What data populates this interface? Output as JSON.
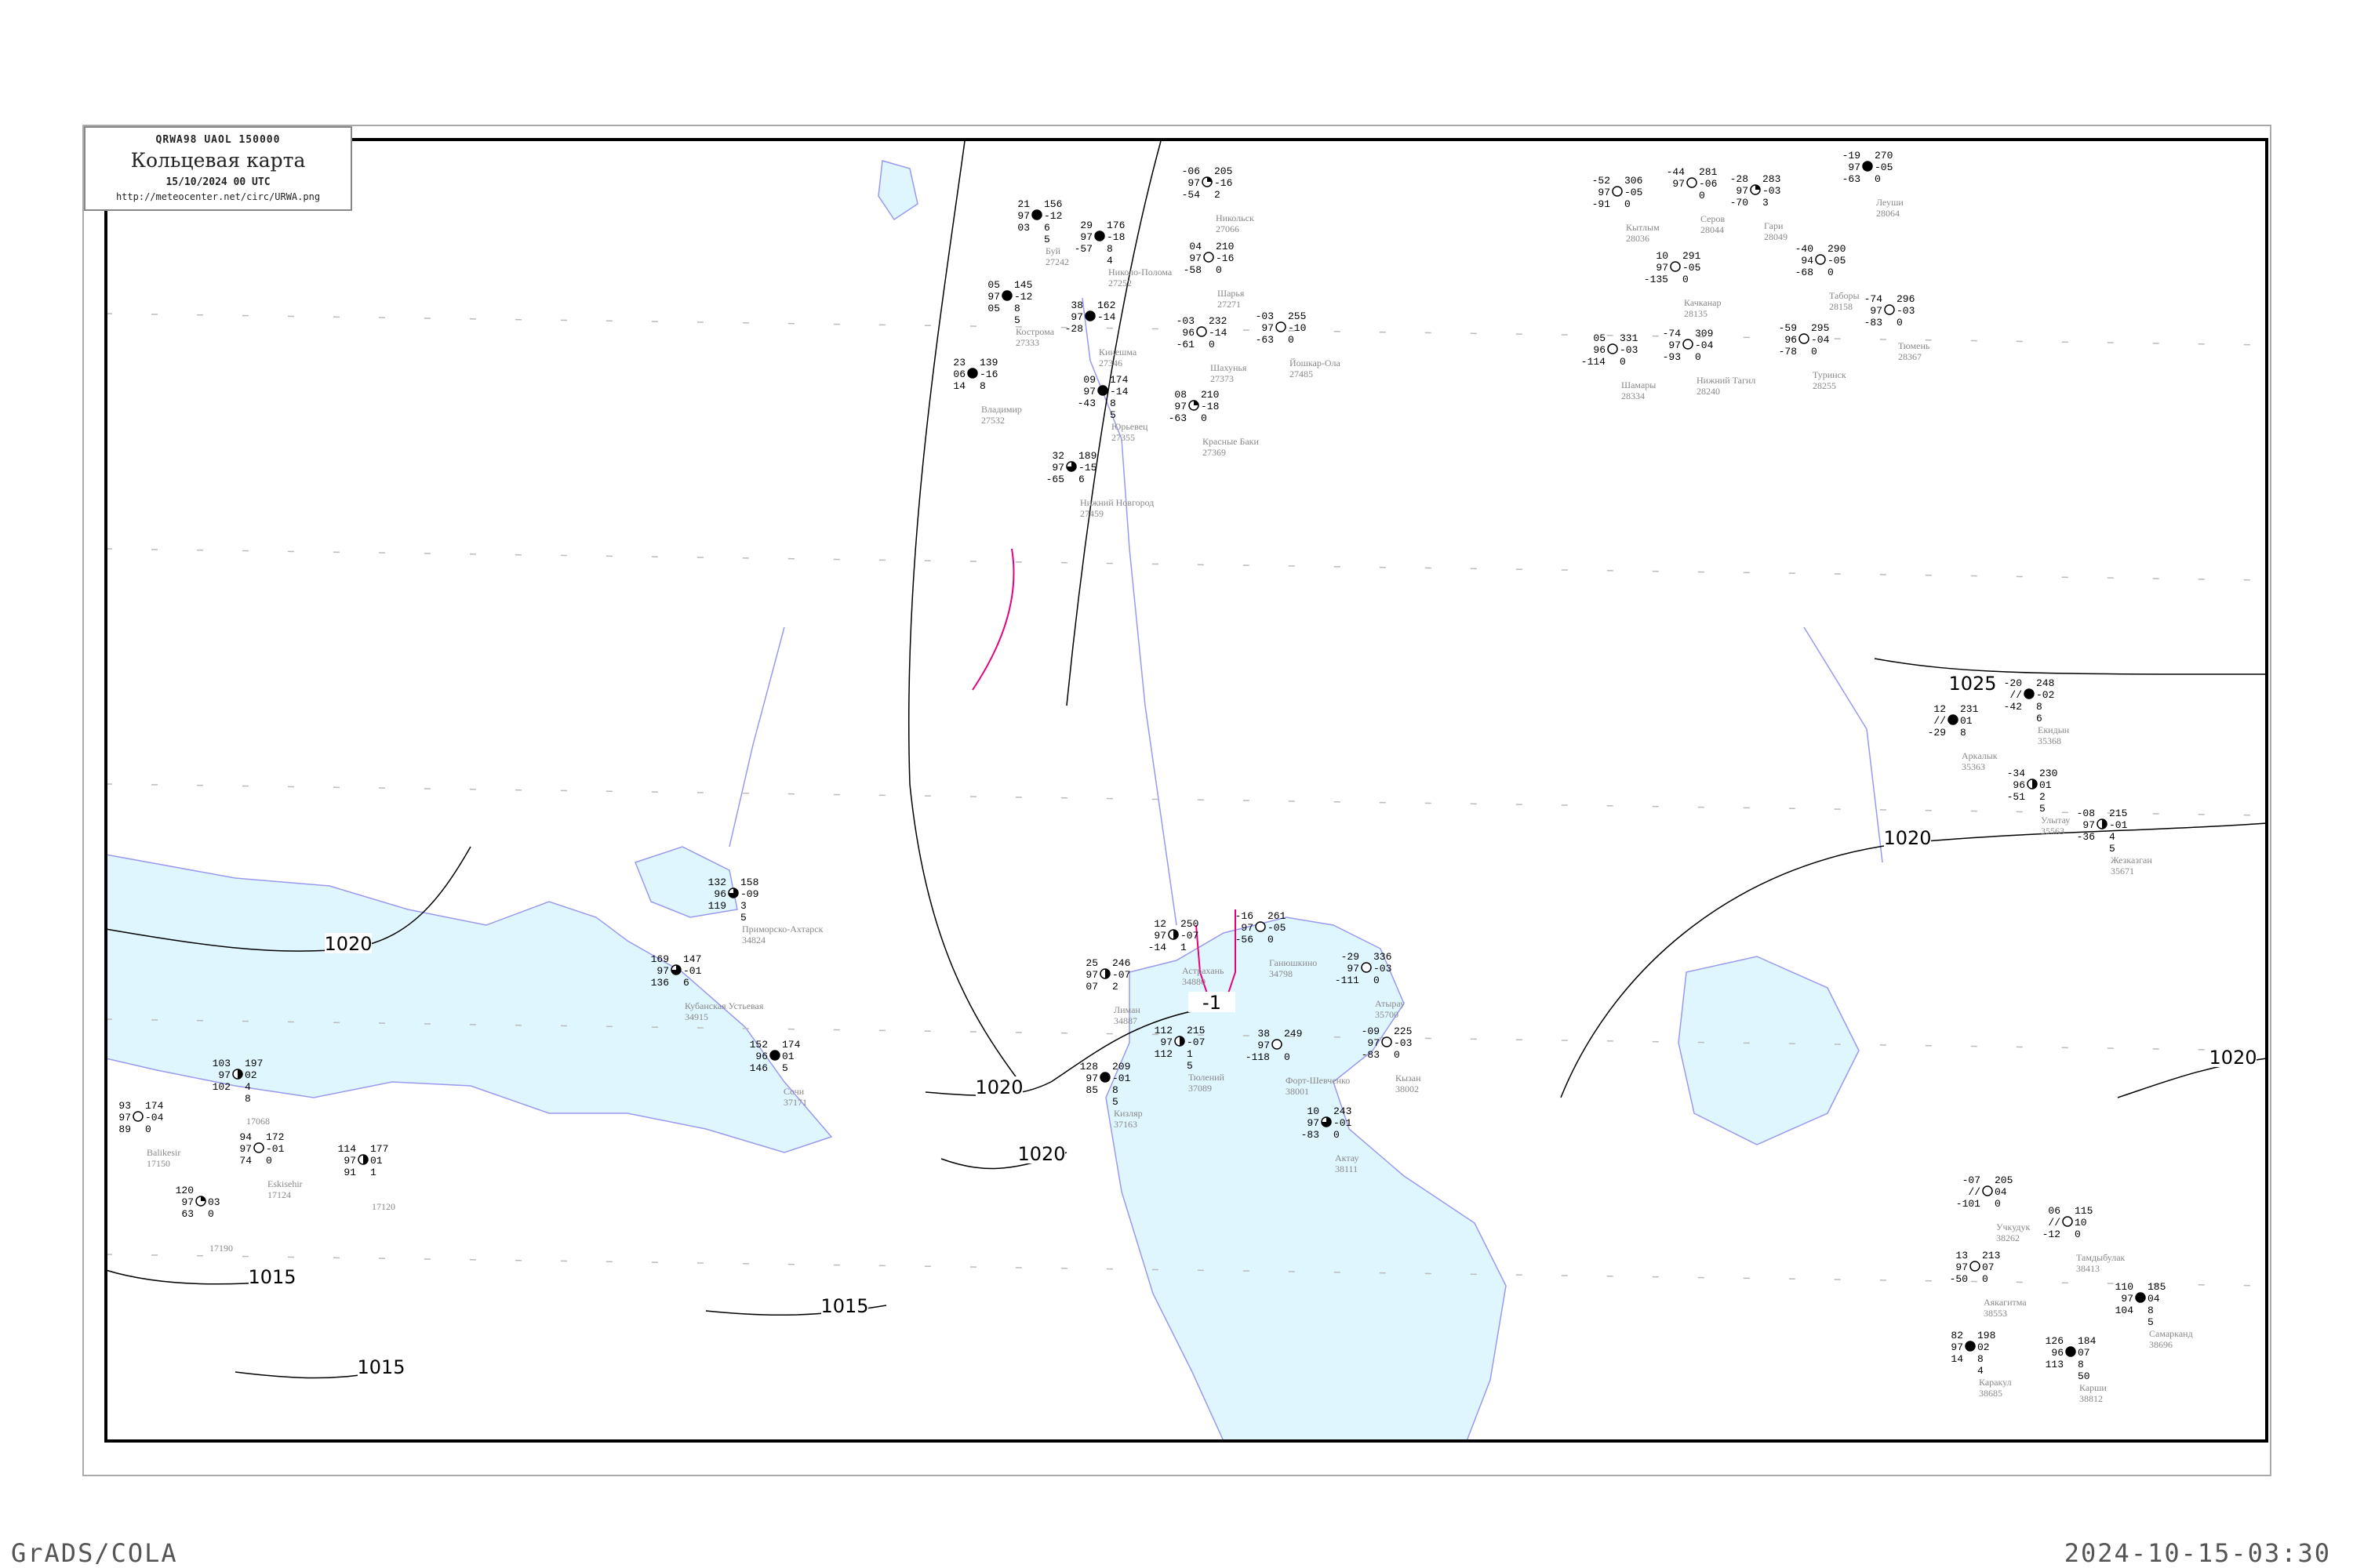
{
  "header": {
    "code_line": "QRWA98  UAOL  150000",
    "title": "Кольцевая карта",
    "datetime": "15/10/2024 00 UTC",
    "url": "http://meteocenter.net/circ/URWA.png"
  },
  "footer": {
    "left": "GrADS/COLA",
    "right": "2024-10-15-03:30"
  },
  "colors": {
    "water": "#e0f6ff",
    "coast": "#9999ee",
    "river": "#1aa3ff",
    "isobar": "#000000",
    "front": "#e6007e",
    "station_name": "#888888"
  },
  "isobar_labels": [
    "1025",
    "1020",
    "1020",
    "1020",
    "1020",
    "1020",
    "1015",
    "1015",
    "1015",
    "-1"
  ],
  "stations": [
    {
      "name": "Буй",
      "id": "27242",
      "temp": "21",
      "vis": "97",
      "dew": "03",
      "pres": "156",
      "tend": "-12",
      "c1": "6",
      "c2": "5",
      "cover": 1
    },
    {
      "name": "Николо-Полома",
      "id": "27252",
      "temp": "29",
      "vis": "97",
      "dew": "-57",
      "pres": "176",
      "tend": "-18",
      "c1": "8",
      "c2": "4",
      "cover": 1
    },
    {
      "name": "Никольск",
      "id": "27066",
      "temp": "-06",
      "vis": "97",
      "dew": "-54",
      "pres": "205",
      "tend": "-16",
      "c1": "2",
      "c2": "",
      "cover": 0.25
    },
    {
      "name": "Шарья",
      "id": "27271",
      "temp": "04",
      "vis": "97",
      "dew": "-58",
      "pres": "210",
      "tend": "-16",
      "c1": "0",
      "c2": "",
      "cover": 0
    },
    {
      "name": "Кострома",
      "id": "27333",
      "temp": "05",
      "vis": "97",
      "dew": "05",
      "pres": "145",
      "tend": "-12",
      "c1": "8",
      "c2": "5",
      "cover": 1
    },
    {
      "name": "Кинешма",
      "id": "27346",
      "temp": "38",
      "vis": "97",
      "dew": "-28",
      "pres": "162",
      "tend": "-14",
      "c1": "",
      "c2": "",
      "cover": 1
    },
    {
      "name": "Юрьевец",
      "id": "27355",
      "temp": "09",
      "vis": "97",
      "dew": "-43",
      "pres": "174",
      "tend": "-14",
      "c1": "8",
      "c2": "5",
      "cover": 1
    },
    {
      "name": "Шахунья",
      "id": "27373",
      "temp": "-03",
      "vis": "96",
      "dew": "-61",
      "pres": "232",
      "tend": "-14",
      "c1": "0",
      "c2": "",
      "cover": 0
    },
    {
      "name": "Красные Баки",
      "id": "27369",
      "temp": "08",
      "vis": "97",
      "dew": "-63",
      "pres": "210",
      "tend": "-18",
      "c1": "0",
      "c2": "",
      "cover": 0.25
    },
    {
      "name": "Нижний Новгород",
      "id": "27459",
      "temp": "32",
      "vis": "97",
      "dew": "-65",
      "pres": "189",
      "tend": "-15",
      "c1": "6",
      "c2": "",
      "cover": 0.75
    },
    {
      "name": "Владимир",
      "id": "27532",
      "temp": "23",
      "vis": "06",
      "dew": "14",
      "pres": "139",
      "tend": "-16",
      "c1": "8",
      "c2": "",
      "cover": 1
    },
    {
      "name": "Йошкар-Ола",
      "id": "27485",
      "temp": "-03",
      "vis": "97",
      "dew": "-63",
      "pres": "255",
      "tend": "-10",
      "c1": "0",
      "c2": "",
      "cover": 0
    },
    {
      "name": "Серов",
      "id": "28044",
      "temp": "-44",
      "vis": "97",
      "dew": "",
      "pres": "281",
      "tend": "-06",
      "c1": "0",
      "c2": "",
      "cover": 0
    },
    {
      "name": "Гари",
      "id": "28049",
      "temp": "-28",
      "vis": "97",
      "dew": "-70",
      "pres": "283",
      "tend": "-03",
      "c1": "3",
      "c2": "",
      "cover": 0.25
    },
    {
      "name": "Леуши",
      "id": "28064",
      "temp": "-19",
      "vis": "97",
      "dew": "-63",
      "pres": "270",
      "tend": "-05",
      "c1": "0",
      "c2": "",
      "cover": 1
    },
    {
      "name": "Кытлым",
      "id": "28036",
      "temp": "-52",
      "vis": "97",
      "dew": "-91",
      "pres": "306",
      "tend": "-05",
      "c1": "0",
      "c2": "",
      "cover": 0
    },
    {
      "name": "Качканар",
      "id": "28135",
      "temp": "10",
      "vis": "97",
      "dew": "-135",
      "pres": "291",
      "tend": "-05",
      "c1": "0",
      "c2": "",
      "cover": 0
    },
    {
      "name": "Таборы",
      "id": "28158",
      "temp": "-40",
      "vis": "94",
      "dew": "-68",
      "pres": "290",
      "tend": "-05",
      "c1": "0",
      "c2": "",
      "cover": 0
    },
    {
      "name": "Туринск",
      "id": "28255",
      "temp": "-59",
      "vis": "96",
      "dew": "-78",
      "pres": "295",
      "tend": "-04",
      "c1": "0",
      "c2": "",
      "cover": 0
    },
    {
      "name": "Нижний Тагил",
      "id": "28240",
      "temp": "-74",
      "vis": "97",
      "dew": "-93",
      "pres": "309",
      "tend": "-04",
      "c1": "0",
      "c2": "",
      "cover": 0
    },
    {
      "name": "Тюмень",
      "id": "28367",
      "temp": "-74",
      "vis": "97",
      "dew": "-83",
      "pres": "296",
      "tend": "-03",
      "c1": "0",
      "c2": "",
      "cover": 0
    },
    {
      "name": "Шамары",
      "id": "28334",
      "temp": "05",
      "vis": "96",
      "dew": "-114",
      "pres": "331",
      "tend": "-03",
      "c1": "0",
      "c2": "",
      "cover": 0
    },
    {
      "name": "Приморско-Ахтарск",
      "id": "34824",
      "temp": "132",
      "vis": "96",
      "dew": "119",
      "pres": "158",
      "tend": "-09",
      "c1": "3",
      "c2": "5",
      "cover": 0.75
    },
    {
      "name": "Кубанская Устьевая",
      "id": "34915",
      "temp": "169",
      "vis": "97",
      "dew": "136",
      "pres": "147",
      "tend": "-01",
      "c1": "6",
      "c2": "",
      "cover": 0.75
    },
    {
      "name": "Сочи",
      "id": "37171",
      "temp": "152",
      "vis": "96",
      "dew": "146",
      "pres": "174",
      "tend": "01",
      "c1": "5",
      "c2": "",
      "cover": 1
    },
    {
      "name": "Кизляр",
      "id": "37163",
      "temp": "128",
      "vis": "97",
      "dew": "85",
      "pres": "209",
      "tend": "-01",
      "c1": "8",
      "c2": "5",
      "cover": 1
    },
    {
      "name": "Астрахань",
      "id": "34880",
      "temp": "12",
      "vis": "97",
      "dew": "-14",
      "pres": "250",
      "tend": "-07",
      "c1": "1",
      "c2": "",
      "cover": 0.5
    },
    {
      "name": "Ганюшкино",
      "id": "34798",
      "temp": "-16",
      "vis": "97",
      "dew": "-56",
      "pres": "261",
      "tend": "-05",
      "c1": "0",
      "c2": "",
      "cover": 0
    },
    {
      "name": "Атырау",
      "id": "35700",
      "temp": "-29",
      "vis": "97",
      "dew": "-111",
      "pres": "336",
      "tend": "-03",
      "c1": "0",
      "c2": "",
      "cover": 0
    },
    {
      "name": "Лиман",
      "id": "34887",
      "temp": "25",
      "vis": "97",
      "dew": "07",
      "pres": "246",
      "tend": "-07",
      "c1": "2",
      "c2": "",
      "cover": 0.5
    },
    {
      "name": "Тюлений",
      "id": "37089",
      "temp": "112",
      "vis": "97",
      "dew": "112",
      "pres": "215",
      "tend": "-07",
      "c1": "1",
      "c2": "5",
      "cover": 0.5
    },
    {
      "name": "Форт-Шевченко",
      "id": "38001",
      "temp": "38",
      "vis": "97",
      "dew": "-118",
      "pres": "249",
      "tend": "",
      "c1": "0",
      "c2": "",
      "cover": 0
    },
    {
      "name": "Кызан",
      "id": "38002",
      "temp": "-09",
      "vis": "97",
      "dew": "-83",
      "pres": "225",
      "tend": "-03",
      "c1": "0",
      "c2": "",
      "cover": 0
    },
    {
      "name": "Актау",
      "id": "38111",
      "temp": "10",
      "vis": "97",
      "dew": "-83",
      "pres": "243",
      "tend": "-01",
      "c1": "0",
      "c2": "",
      "cover": 0.75
    },
    {
      "name": "Екидын",
      "id": "35368",
      "temp": "-20",
      "vis": "//",
      "dew": "-42",
      "pres": "248",
      "tend": "-02",
      "c1": "8",
      "c2": "6",
      "cover": 1
    },
    {
      "name": "Аркалык",
      "id": "35363",
      "temp": "12",
      "vis": "//",
      "dew": "-29",
      "pres": "231",
      "tend": "01",
      "c1": "8",
      "c2": "",
      "cover": 1
    },
    {
      "name": "Улытау",
      "id": "35563",
      "temp": "-34",
      "vis": "96",
      "dew": "-51",
      "pres": "230",
      "tend": "01",
      "c1": "2",
      "c2": "5",
      "cover": 0.5
    },
    {
      "name": "Жезказган",
      "id": "35671",
      "temp": "-08",
      "vis": "97",
      "dew": "-36",
      "pres": "215",
      "tend": "-01",
      "c1": "4",
      "c2": "5",
      "cover": 0.5
    },
    {
      "name": "Учкудук",
      "id": "38262",
      "temp": "-07",
      "vis": "//",
      "dew": "-101",
      "pres": "205",
      "tend": "04",
      "c1": "0",
      "c2": "",
      "cover": 0
    },
    {
      "name": "Тамдыбулак",
      "id": "38413",
      "temp": "06",
      "vis": "//",
      "dew": "-12",
      "pres": "115",
      "tend": "10",
      "c1": "0",
      "c2": "",
      "cover": 0
    },
    {
      "name": "Аякагитма",
      "id": "38553",
      "temp": "13",
      "vis": "97",
      "dew": "-50",
      "pres": "213",
      "tend": "07",
      "c1": "0",
      "c2": "",
      "cover": 0
    },
    {
      "name": "Каракул",
      "id": "38685",
      "temp": "82",
      "vis": "97",
      "dew": "14",
      "pres": "198",
      "tend": "02",
      "c1": "8",
      "c2": "4",
      "cover": 1
    },
    {
      "name": "Карши",
      "id": "38812",
      "temp": "126",
      "vis": "96",
      "dew": "113",
      "pres": "184",
      "tend": "07",
      "c1": "8",
      "c2": "50",
      "cover": 1
    },
    {
      "name": "Самарканд",
      "id": "38696",
      "temp": "110",
      "vis": "97",
      "dew": "104",
      "pres": "185",
      "tend": "04",
      "c1": "8",
      "c2": "5",
      "cover": 1
    },
    {
      "name": "Eskisehir",
      "id": "17124",
      "temp": "94",
      "vis": "97",
      "dew": "74",
      "pres": "172",
      "tend": "-01",
      "c1": "0",
      "c2": "",
      "cover": 0
    },
    {
      "name": "",
      "id": "17068",
      "temp": "103",
      "vis": "97",
      "dew": "102",
      "pres": "197",
      "tend": "02",
      "c1": "4",
      "c2": "8",
      "cover": 0.5
    },
    {
      "name": "Balikesir",
      "id": "17150",
      "temp": "93",
      "vis": "97",
      "dew": "89",
      "pres": "174",
      "tend": "-04",
      "c1": "0",
      "c2": "",
      "cover": 0
    },
    {
      "name": "",
      "id": "17120",
      "temp": "114",
      "vis": "97",
      "dew": "91",
      "pres": "177",
      "tend": "01",
      "c1": "1",
      "c2": "",
      "cover": 0.5
    },
    {
      "name": "",
      "id": "17190",
      "temp": "120",
      "vis": "97",
      "dew": "63",
      "pres": "",
      "tend": "03",
      "c1": "0",
      "c2": "",
      "cover": 0.25
    }
  ]
}
